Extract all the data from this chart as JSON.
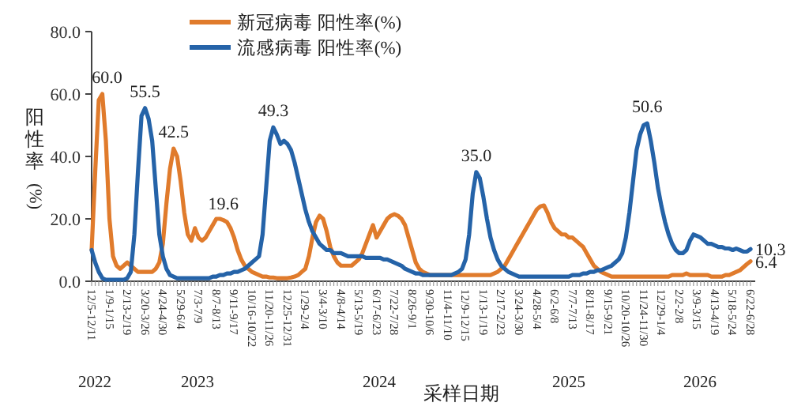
{
  "chart_data": {
    "type": "line",
    "xlabel": "采样日期",
    "ylabel": "阳性率(%)",
    "categories": [
      "12/5-12/11",
      null,
      null,
      null,
      null,
      "1/9-1/15",
      null,
      null,
      null,
      null,
      "2/13-2/19",
      null,
      null,
      null,
      null,
      "3/20-3/26",
      null,
      null,
      null,
      null,
      "4/24-4/30",
      null,
      null,
      null,
      null,
      "5/29-6/4",
      null,
      null,
      null,
      null,
      "7/3-7/9",
      null,
      null,
      null,
      null,
      "8/7-8/13",
      null,
      null,
      null,
      null,
      "9/11-9/17",
      null,
      null,
      null,
      null,
      "10/16-10/22",
      null,
      null,
      null,
      null,
      "11/20-11/26",
      null,
      null,
      null,
      null,
      "12/25-12/31",
      null,
      null,
      null,
      null,
      "1/29-2/4",
      null,
      null,
      null,
      null,
      "3/4-3/10",
      null,
      null,
      null,
      null,
      "4/8-4/14",
      null,
      null,
      null,
      null,
      "5/13-5/19",
      null,
      null,
      null,
      null,
      "6/17-6/23",
      null,
      null,
      null,
      null,
      "7/22-7/28",
      null,
      null,
      null,
      null,
      "8/26-9/1",
      null,
      null,
      null,
      null,
      "9/30-10/6",
      null,
      null,
      null,
      null,
      "11/4-11/10",
      null,
      null,
      null,
      null,
      "12/9-12/15",
      null,
      null,
      null,
      null,
      "1/13-1/19",
      null,
      null,
      null,
      null,
      "2/17-2/23",
      null,
      null,
      null,
      null,
      "3/24-3/30",
      null,
      null,
      null,
      null,
      "4/28-5/4",
      null,
      null,
      null,
      null,
      "6/2-6/8",
      null,
      null,
      null,
      null,
      "7/7-7/13",
      null,
      null,
      null,
      null,
      "8/11-8/17",
      null,
      null,
      null,
      null,
      "9/15-9/21",
      null,
      null,
      null,
      null,
      "10/20-10/26",
      null,
      null,
      null,
      null,
      "11/24-11/30",
      null,
      null,
      null,
      null,
      "12/29-1/4",
      null,
      null,
      null,
      null,
      "2/2-2/8",
      null,
      null,
      null,
      null,
      "3/9-3/15",
      null,
      null,
      null,
      null,
      "4/13-4/19",
      null,
      null,
      null,
      null,
      "5/18-5/24",
      null,
      null,
      null,
      null,
      "6/22-6/28"
    ],
    "series": [
      {
        "name": "新冠病毒 阳性率(%)",
        "color": "#e07b2c",
        "values": [
          10,
          35,
          58,
          60,
          45,
          20,
          8,
          5,
          4,
          5,
          6,
          5,
          4,
          3,
          3,
          3,
          3,
          3,
          4,
          6,
          12,
          25,
          36,
          42.5,
          40,
          32,
          22,
          15,
          13,
          17,
          14,
          13,
          14,
          16,
          18,
          20,
          20,
          19.6,
          19,
          17,
          14,
          10,
          7,
          5,
          4,
          3,
          2.5,
          2,
          1.5,
          1.5,
          1.2,
          1.2,
          1,
          1,
          1,
          1,
          1.2,
          1.5,
          2,
          3,
          4,
          8,
          14,
          19,
          21,
          20,
          16,
          11,
          8,
          6,
          5,
          5,
          5,
          5,
          6,
          7,
          9,
          12,
          15,
          18,
          14,
          16,
          18,
          20,
          21,
          21.5,
          21,
          20,
          18,
          14,
          10,
          6,
          4,
          3,
          2.5,
          2,
          2,
          2,
          2,
          2,
          2,
          2,
          2,
          2,
          2,
          2,
          2,
          2,
          2,
          2,
          2,
          2,
          2,
          2.5,
          3,
          4,
          5,
          7,
          9,
          11,
          13,
          15,
          17,
          19,
          21,
          23,
          24,
          24.3,
          22,
          19,
          17,
          16,
          15,
          15,
          14,
          14,
          13,
          12,
          11,
          9,
          7,
          5,
          4,
          3,
          2.5,
          2,
          1.5,
          1.5,
          1.5,
          1.5,
          1.5,
          1.5,
          1.5,
          1.5,
          1.5,
          1.5,
          1.5,
          1.5,
          1.5,
          1.5,
          1.5,
          1.5,
          1.5,
          2,
          2,
          2,
          2,
          2.5,
          2,
          2,
          2,
          2,
          2,
          2,
          1.5,
          1.5,
          1.5,
          1.5,
          2,
          2,
          2.5,
          3,
          3.5,
          4.5,
          5.5,
          6.4
        ],
        "value_labels": [
          null,
          null,
          null,
          "60.0",
          null,
          null,
          null,
          null,
          null,
          null,
          null,
          null,
          null,
          null,
          null,
          null,
          null,
          null,
          null,
          null,
          null,
          null,
          null,
          "42.5",
          null,
          null,
          null,
          null,
          null,
          null,
          null,
          null,
          null,
          null,
          null,
          null,
          null,
          "19.6",
          null,
          null,
          null,
          null,
          null,
          null,
          null,
          null,
          null,
          null,
          null,
          null,
          null,
          null,
          null,
          null,
          null,
          null,
          null,
          null,
          null,
          null,
          null,
          null,
          null,
          null,
          null,
          null,
          null,
          null,
          null,
          null,
          null,
          null,
          null,
          null,
          null,
          null,
          null,
          null,
          null,
          null,
          null,
          null,
          null,
          null,
          null,
          null,
          null,
          null,
          null,
          null,
          null,
          null,
          null,
          null,
          null,
          null,
          null,
          null,
          null,
          null,
          null,
          null,
          null,
          null,
          null,
          null,
          null,
          null,
          null,
          null,
          null,
          null,
          null,
          null,
          null,
          null,
          null,
          null,
          null,
          null,
          null,
          null,
          null,
          null,
          null,
          null,
          null,
          null,
          null,
          null,
          null,
          null,
          null,
          null,
          null,
          null,
          null,
          null,
          null,
          null,
          null,
          null,
          null,
          null,
          null,
          null,
          null,
          null,
          null,
          null,
          null,
          null,
          null,
          null,
          null,
          null,
          null,
          null,
          null,
          null,
          null,
          null,
          null,
          null,
          null,
          null,
          null,
          null,
          null,
          null,
          null,
          null,
          null,
          null,
          null,
          null,
          null,
          null,
          null,
          null,
          null,
          null,
          null,
          null,
          null,
          "6.4"
        ]
      },
      {
        "name": "流感病毒 阳性率(%)",
        "color": "#2563a8",
        "values": [
          10,
          6,
          3,
          1,
          0.5,
          0.5,
          0.5,
          0.5,
          0.5,
          0.5,
          1,
          3,
          15,
          35,
          53,
          55.5,
          52,
          45,
          30,
          15,
          8,
          4,
          2,
          1.5,
          1,
          1,
          1,
          1,
          1,
          1,
          1,
          1,
          1,
          1,
          1.5,
          1.5,
          2,
          2,
          2.5,
          2.5,
          3,
          3,
          3.5,
          4,
          5,
          6,
          7,
          8,
          15,
          30,
          45,
          49.3,
          47,
          44,
          45,
          44,
          42,
          38,
          33,
          28,
          23,
          19,
          16,
          14,
          12,
          11,
          10,
          10,
          9,
          9,
          9,
          8.5,
          8,
          8,
          8,
          8,
          8,
          7.5,
          7.5,
          7.5,
          7.5,
          7.5,
          7,
          7,
          6.5,
          6,
          5.5,
          5,
          4,
          3.5,
          3,
          2.5,
          2.5,
          2,
          2,
          2,
          2,
          2,
          2,
          2,
          2,
          2,
          2.5,
          3,
          4,
          7,
          15,
          28,
          35,
          33,
          27,
          20,
          14,
          10,
          7,
          5,
          4,
          3,
          2.5,
          2,
          1.5,
          1.5,
          1.5,
          1.5,
          1.5,
          1.5,
          1.5,
          1.5,
          1.5,
          1.5,
          1.5,
          1.5,
          1.5,
          1.5,
          1.5,
          2,
          2,
          2,
          2.5,
          2.5,
          3,
          3,
          3.5,
          3.5,
          4,
          4.5,
          5,
          6,
          7,
          9,
          14,
          22,
          32,
          42,
          47,
          50,
          50.6,
          45,
          38,
          30,
          24,
          19,
          15,
          12,
          10,
          9,
          9,
          10,
          13,
          15,
          14.5,
          14,
          13,
          12,
          12,
          11.5,
          11,
          11,
          10.5,
          10.5,
          10,
          10.5,
          10,
          9.5,
          9.5,
          10.3
        ],
        "value_labels": [
          null,
          null,
          null,
          null,
          null,
          null,
          null,
          null,
          null,
          null,
          null,
          null,
          null,
          null,
          null,
          "55.5",
          null,
          null,
          null,
          null,
          null,
          null,
          null,
          null,
          null,
          null,
          null,
          null,
          null,
          null,
          null,
          null,
          null,
          null,
          null,
          null,
          null,
          null,
          null,
          null,
          null,
          null,
          null,
          null,
          null,
          null,
          null,
          null,
          null,
          null,
          null,
          "49.3",
          null,
          null,
          null,
          null,
          null,
          null,
          null,
          null,
          null,
          null,
          null,
          null,
          null,
          null,
          null,
          null,
          null,
          null,
          null,
          null,
          null,
          null,
          null,
          null,
          null,
          null,
          null,
          null,
          null,
          null,
          null,
          null,
          null,
          null,
          null,
          null,
          null,
          null,
          null,
          null,
          null,
          null,
          null,
          null,
          null,
          null,
          null,
          null,
          null,
          null,
          null,
          null,
          null,
          null,
          null,
          null,
          "35.0",
          null,
          null,
          null,
          null,
          null,
          null,
          null,
          null,
          null,
          null,
          null,
          null,
          null,
          null,
          null,
          null,
          null,
          null,
          null,
          null,
          null,
          null,
          null,
          null,
          null,
          null,
          null,
          null,
          null,
          null,
          null,
          null,
          null,
          null,
          null,
          null,
          null,
          null,
          null,
          null,
          null,
          null,
          null,
          null,
          null,
          null,
          null,
          "50.6",
          null,
          null,
          null,
          null,
          null,
          null,
          null,
          null,
          null,
          null,
          null,
          null,
          null,
          null,
          null,
          null,
          null,
          null,
          null,
          null,
          null,
          null,
          null,
          null,
          null,
          null,
          null,
          null,
          "10.3"
        ]
      }
    ],
    "ylim": [
      0,
      80
    ],
    "yticks": [
      {
        "value": 0,
        "label": "0.0"
      },
      {
        "value": 20,
        "label": "20.0"
      },
      {
        "value": 40,
        "label": "40.0"
      },
      {
        "value": 60,
        "label": "60.0"
      },
      {
        "value": 80,
        "label": "80.0"
      }
    ],
    "grid": false,
    "legend": "top",
    "marker": "none",
    "line_style": "solid",
    "annotations": [
      "2022",
      "2023",
      "2024",
      "2025",
      "2026"
    ]
  }
}
